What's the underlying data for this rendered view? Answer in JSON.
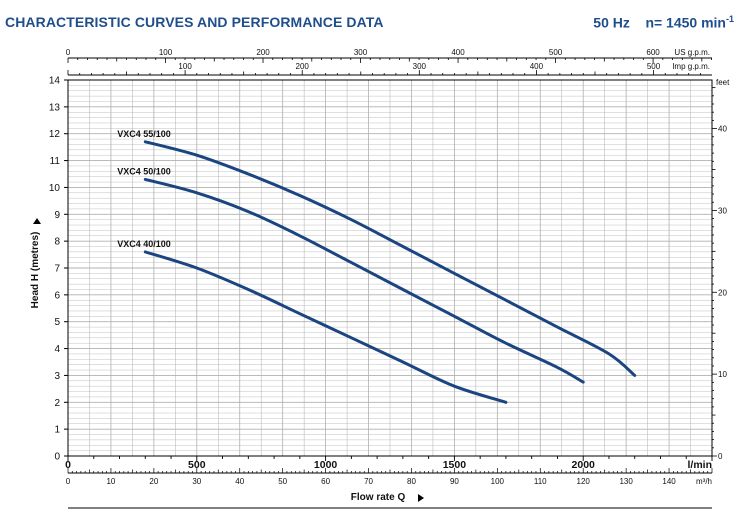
{
  "header": {
    "title": "CHARACTERISTIC CURVES AND PERFORMANCE DATA",
    "freq": "50 Hz",
    "speed": "n= 1450 min",
    "speed_sup": "-1"
  },
  "colors": {
    "curve": "#1a4580",
    "grid": "#b0b0b0",
    "axis": "#000000",
    "title": "#1f4e8c"
  },
  "chart_data": {
    "type": "line",
    "ylabel": "Head H  (metres)",
    "xlabel": "Flow rate Q",
    "ylim": [
      0,
      14
    ],
    "xlim_lmin": [
      0,
      2500
    ],
    "y_ticks": [
      0,
      1,
      2,
      3,
      4,
      5,
      6,
      7,
      8,
      9,
      10,
      11,
      12,
      13,
      14
    ],
    "feet_ticks": [
      0,
      10,
      20,
      30,
      40
    ],
    "feet_unit": "feet",
    "us_gpm_ticks": [
      0,
      100,
      200,
      300,
      400,
      500,
      600
    ],
    "us_gpm_unit": "US g.p.m.",
    "imp_gpm_ticks": [
      100,
      200,
      300,
      400,
      500
    ],
    "imp_gpm_unit": "Imp g.p.m.",
    "lmin_ticks": [
      0,
      500,
      1000,
      1500,
      2000
    ],
    "lmin_unit": "l/min",
    "m3h_ticks": [
      0,
      10,
      20,
      30,
      40,
      50,
      60,
      70,
      80,
      90,
      100,
      110,
      120,
      130,
      140
    ],
    "m3h_unit": "m³/h",
    "series": [
      {
        "name": "VXC4 55/100",
        "x": [
          300,
          500,
          700,
          900,
          1100,
          1300,
          1500,
          1700,
          1900,
          2100,
          2200
        ],
        "y": [
          11.7,
          11.2,
          10.5,
          9.7,
          8.8,
          7.8,
          6.8,
          5.8,
          4.8,
          3.8,
          3.0
        ]
      },
      {
        "name": "VXC4 50/100",
        "x": [
          300,
          500,
          700,
          900,
          1100,
          1300,
          1500,
          1700,
          1900,
          2000
        ],
        "y": [
          10.3,
          9.8,
          9.1,
          8.2,
          7.2,
          6.2,
          5.2,
          4.2,
          3.3,
          2.75
        ]
      },
      {
        "name": "VXC4 40/100",
        "x": [
          300,
          500,
          700,
          900,
          1100,
          1300,
          1500,
          1700
        ],
        "y": [
          7.6,
          7.0,
          6.2,
          5.3,
          4.4,
          3.5,
          2.6,
          2.0
        ]
      }
    ]
  }
}
